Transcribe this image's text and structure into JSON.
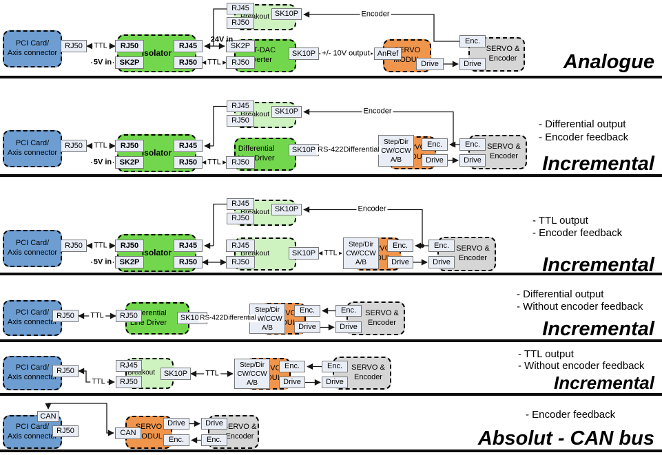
{
  "shared": {
    "pci_line1": "PCI Card/",
    "pci_line2": "Axis connector",
    "isolator": "Isolator",
    "breakout": "Breakout",
    "uart_line1": "UART-DAC",
    "uart_line2": "converter",
    "diff_line1": "Differential",
    "diff_line2": "Line Driver",
    "servo_line1": "SERVO",
    "servo_line2": "MODUL",
    "servoenc_line1": "SERVO &",
    "servoenc_line2": "Encoder",
    "rj50": "RJ50",
    "rj45": "RJ45",
    "sk2p": "SK2P",
    "sk10p": "SK10P",
    "anref": "AnRef",
    "drive": "Drive",
    "enc": "Enc.",
    "can": "CAN",
    "stepdir_line1": "Step/Dir",
    "stepdir_line2": "CW/CCW",
    "stepdir_line3": "A/B",
    "ttl": "TTL",
    "v24": "24V in",
    "v5": "5V in",
    "encoder": "Encoder",
    "out10v": "+/- 10V output",
    "rs422_line1": "RS-422",
    "rs422_line2": "Differential"
  },
  "sections": [
    {
      "title": "Analogue",
      "notes": []
    },
    {
      "title": "Incremental",
      "notes": [
        "- Differential output",
        "- Encoder feedback"
      ]
    },
    {
      "title": "Incremental",
      "notes": [
        "- TTL output",
        "- Encoder feedback"
      ]
    },
    {
      "title": "Incremental",
      "notes": [
        "- Differential output",
        "- Without encoder feedback"
      ]
    },
    {
      "title": "Incremental",
      "notes": [
        "- TTL output",
        "- Without encoder feedback"
      ]
    },
    {
      "title": "Absolut - CAN bus",
      "notes": [
        "- Encoder feedback"
      ]
    }
  ],
  "colors": {
    "pci_blue": "#6D9DD1",
    "module_green": "#72D74C",
    "breakout_green": "#CFF2C1",
    "servo_orange": "#F0954C",
    "encoder_gray": "#D6D6D6",
    "port_fill": "#E9EDF6",
    "line": "#161616"
  }
}
